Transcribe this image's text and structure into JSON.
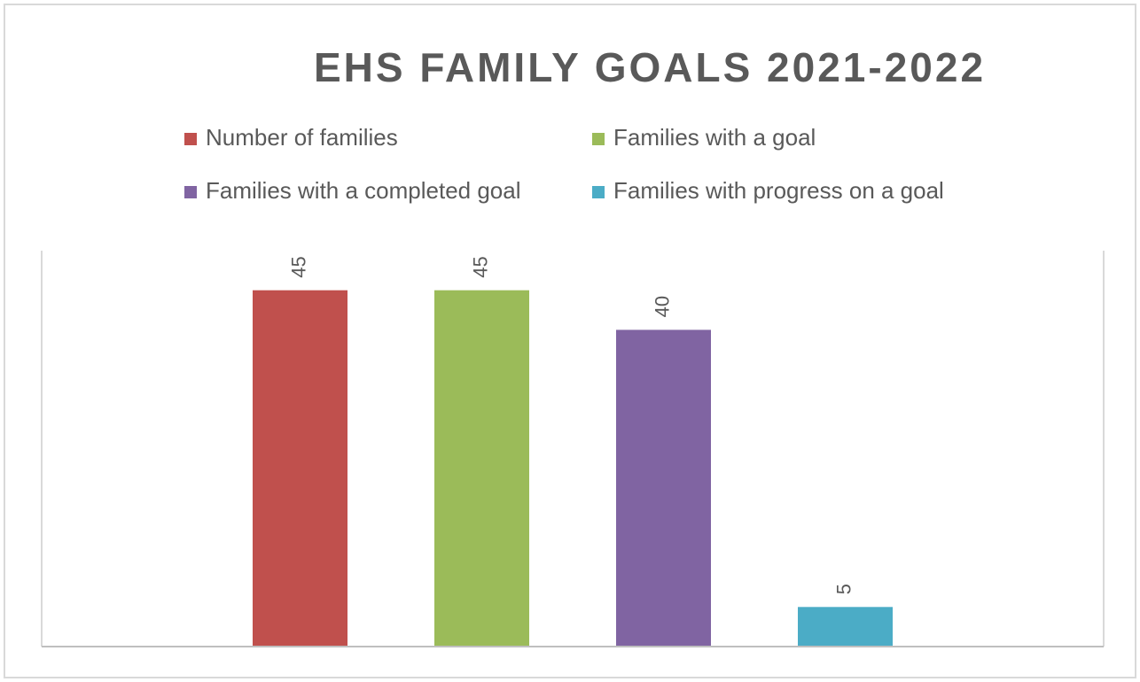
{
  "chart_data": {
    "type": "bar",
    "title": "EHS FAMILY GOALS 2021-2022",
    "categories": [
      null
    ],
    "series": [
      {
        "name": "Number of families",
        "color": "#c0504d",
        "values": [
          45
        ]
      },
      {
        "name": "Families with a goal",
        "color": "#9bbb59",
        "values": [
          45
        ]
      },
      {
        "name": "Families with a completed goal",
        "color": "#8064a2",
        "values": [
          40
        ]
      },
      {
        "name": "Families with progress on a goal",
        "color": "#4bacc6",
        "values": [
          5
        ]
      }
    ],
    "ylim": [
      0,
      50
    ],
    "legend": "top"
  }
}
